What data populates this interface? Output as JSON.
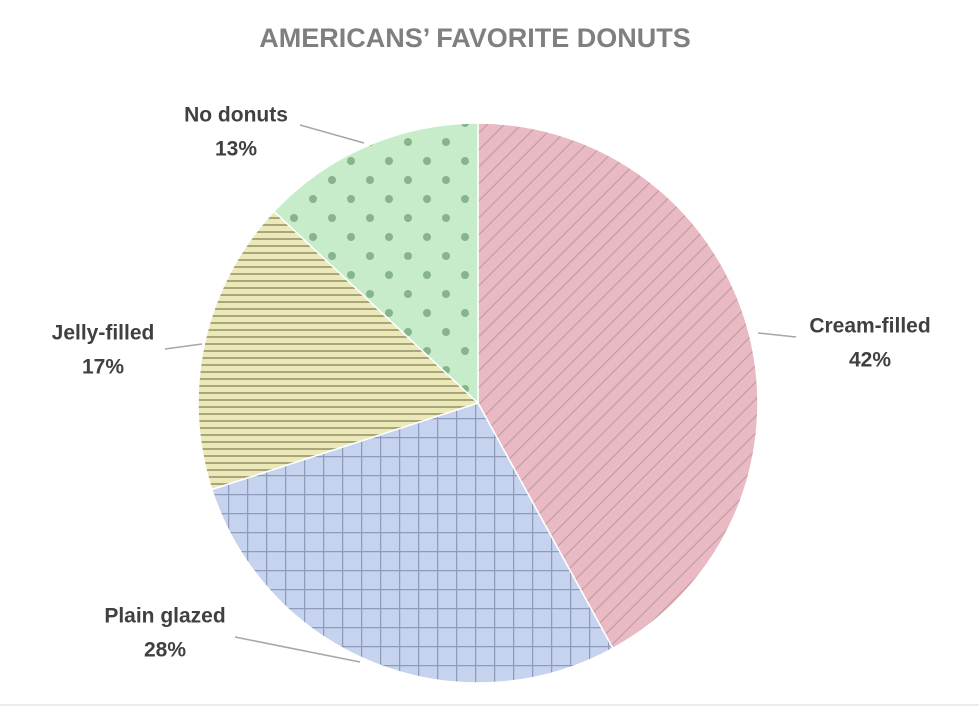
{
  "chart_data": {
    "type": "pie",
    "title": "AMERICANS’ FAVORITE DONUTS",
    "categories": [
      "Cream-filled",
      "Plain glazed",
      "Jelly-filled",
      "No donuts"
    ],
    "values": [
      42,
      28,
      17,
      13
    ],
    "value_labels": [
      "42%",
      "28%",
      "17%",
      "13%"
    ],
    "colors": [
      "#e9bac3",
      "#c6d3ee",
      "#ece9b8",
      "#c6ecc9"
    ]
  }
}
